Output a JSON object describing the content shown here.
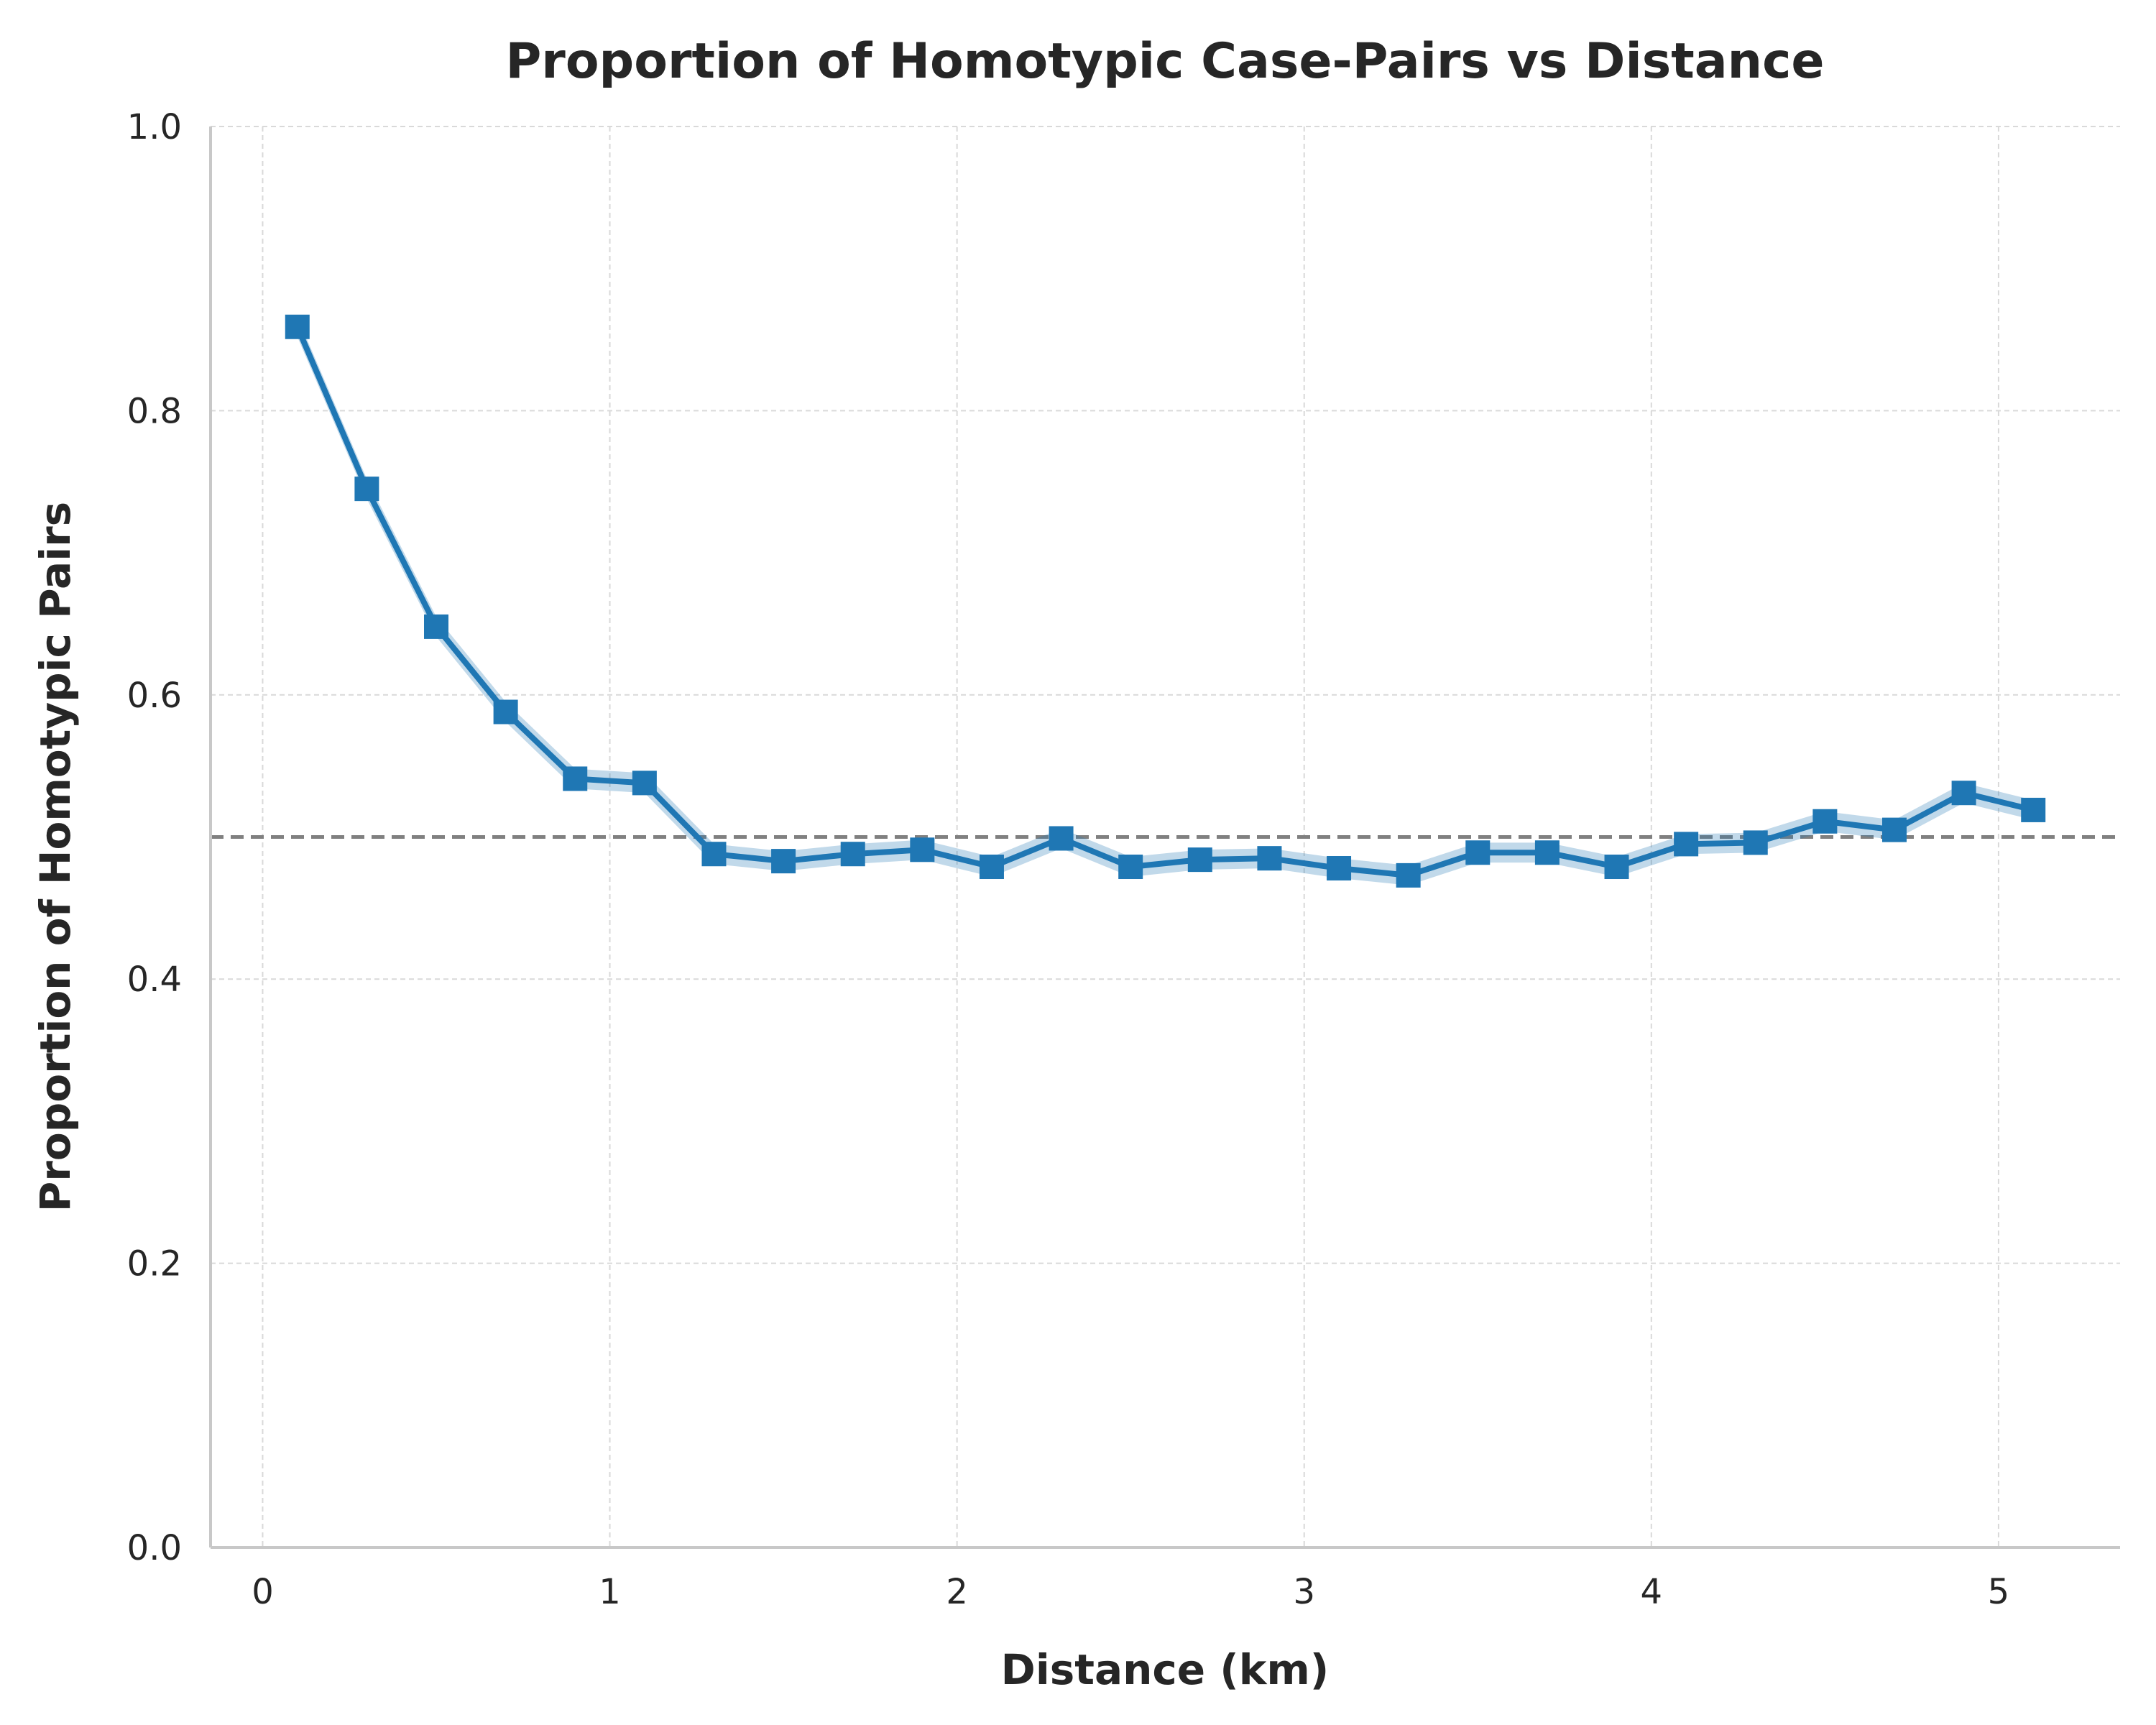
{
  "chart_data": {
    "type": "line",
    "title": "Proportion of Homotypic Case-Pairs vs Distance",
    "xlabel": "Distance (km)",
    "ylabel": "Proportion of Homotypic Pairs",
    "xlim": [
      -0.15,
      5.35
    ],
    "ylim": [
      0.0,
      1.0
    ],
    "x_ticks": [
      0,
      1,
      2,
      3,
      4,
      5
    ],
    "x_tick_labels": [
      "0",
      "1",
      "2",
      "3",
      "4",
      "5"
    ],
    "y_ticks": [
      0.0,
      0.2,
      0.4,
      0.6,
      0.8,
      1.0
    ],
    "y_tick_labels": [
      "0.0",
      "0.2",
      "0.4",
      "0.6",
      "0.8",
      "1.0"
    ],
    "grid": true,
    "reference_line": {
      "y": 0.5,
      "style": "dashed",
      "color": "#808080"
    },
    "series": [
      {
        "color": "#1f77b4",
        "marker": "square",
        "x": [
          0.1,
          0.3,
          0.5,
          0.7,
          0.9,
          1.1,
          1.3,
          1.5,
          1.7,
          1.9,
          2.1,
          2.3,
          2.5,
          2.7,
          2.9,
          3.1,
          3.3,
          3.5,
          3.7,
          3.9,
          4.1,
          4.3,
          4.5,
          4.7,
          4.9,
          5.1
        ],
        "y": [
          0.859,
          0.745,
          0.648,
          0.588,
          0.541,
          0.538,
          0.488,
          0.483,
          0.488,
          0.491,
          0.479,
          0.499,
          0.479,
          0.484,
          0.485,
          0.478,
          0.473,
          0.489,
          0.489,
          0.479,
          0.495,
          0.496,
          0.511,
          0.505,
          0.531,
          0.519
        ],
        "band_half_width": 0.007
      }
    ]
  }
}
